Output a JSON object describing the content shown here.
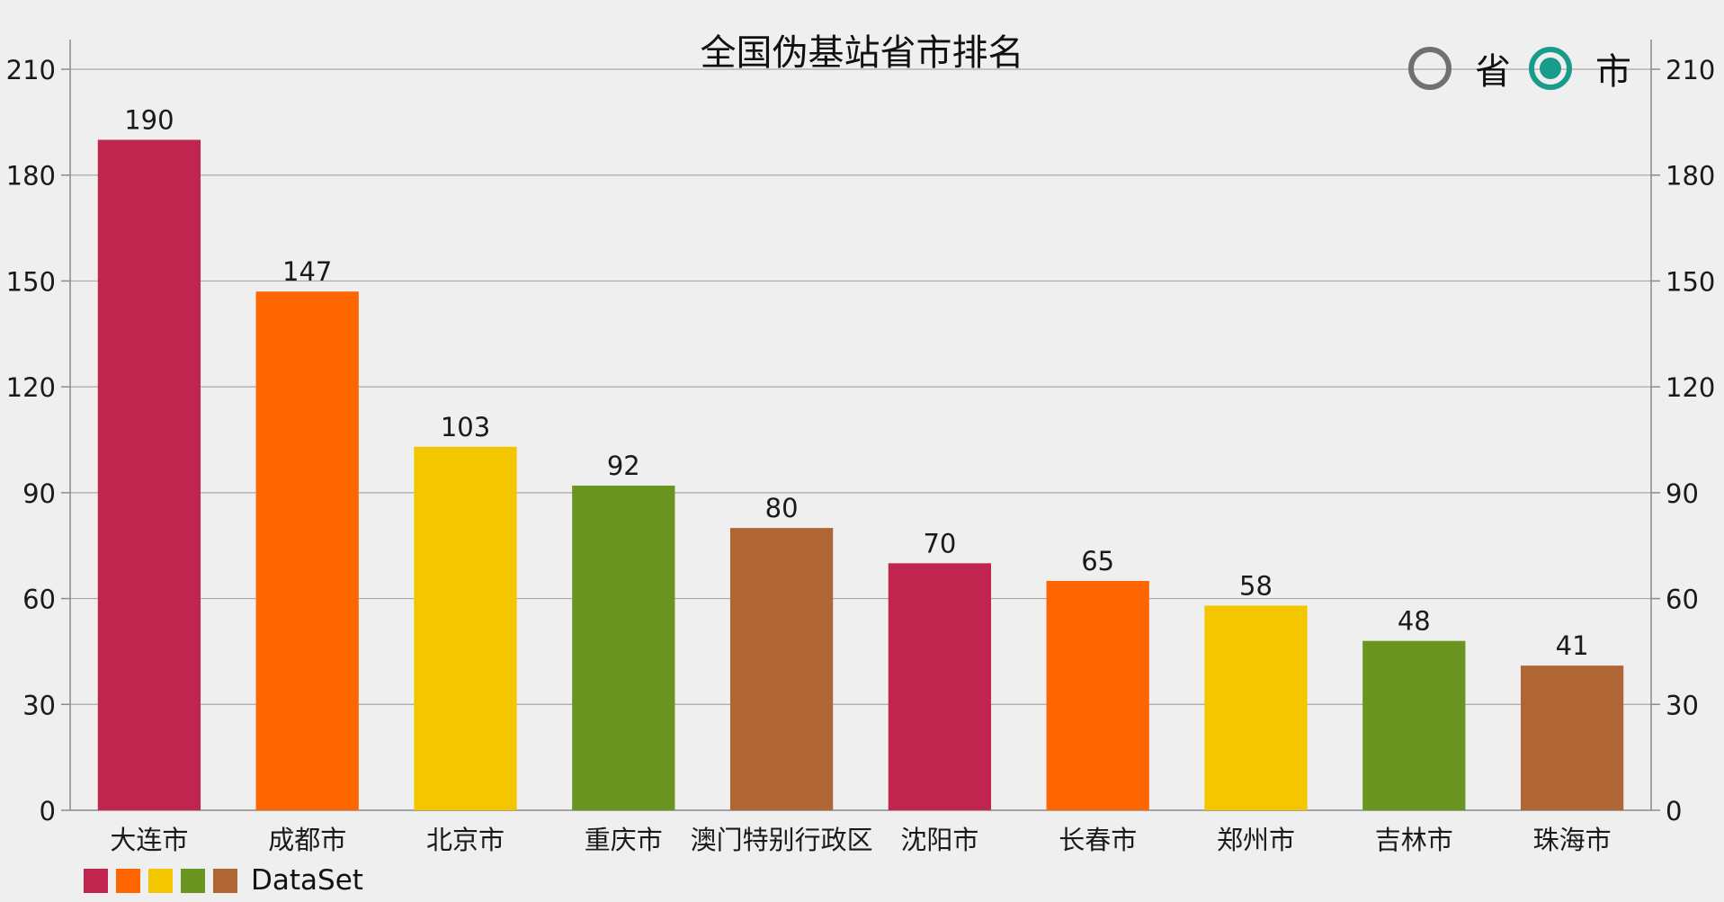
{
  "chart_data": {
    "type": "bar",
    "title": "全国伪基站省市排名",
    "categories": [
      "大连市",
      "成都市",
      "北京市",
      "重庆市",
      "澳门特别行政区",
      "沈阳市",
      "长春市",
      "郑州市",
      "吉林市",
      "珠海市"
    ],
    "values": [
      190,
      147,
      103,
      92,
      80,
      70,
      65,
      58,
      48,
      41
    ],
    "bar_colors": [
      "#c02550",
      "#ff6600",
      "#f3c600",
      "#6a9520",
      "#b06535",
      "#c02550",
      "#ff6600",
      "#f3c600",
      "#6a9520",
      "#b06535"
    ],
    "ylim": [
      0,
      210
    ],
    "yticks": [
      0,
      30,
      60,
      90,
      120,
      150,
      180,
      210
    ],
    "right_axis_mirrored": true,
    "grid": true,
    "data_labels": true,
    "legend": {
      "position": "bottom-left",
      "colors": [
        "#c02550",
        "#ff6600",
        "#f3c600",
        "#6a9520",
        "#b06535"
      ],
      "label": "DataSet"
    }
  },
  "toggle": {
    "options": [
      {
        "label": "省",
        "selected": false
      },
      {
        "label": "市",
        "selected": true
      }
    ],
    "accent_color": "#1a9c8a"
  }
}
